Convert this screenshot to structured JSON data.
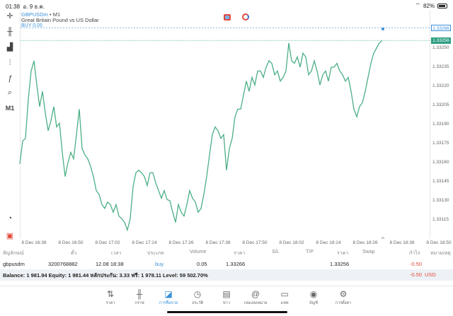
{
  "status": {
    "time": "01:38",
    "date": "อ. 9 ธ.ค.",
    "battery": "82%"
  },
  "chart": {
    "symbol": "GBPUSDm",
    "timeframe": "M1",
    "description": "Great Britain Pound vs US Dollar",
    "order_label": "BUY 0.05",
    "timeframe_button": "M1",
    "colors": {
      "line": "#4caf86",
      "ask": "#3a8fd8",
      "bid": "#2e9e82"
    }
  },
  "chart_data": {
    "type": "line",
    "series": [
      {
        "values": [
          1.33159,
          1.33177,
          1.33179,
          1.3321,
          1.33232,
          1.3324,
          1.33221,
          1.33204,
          1.33216,
          1.33199,
          1.33185,
          1.33193,
          1.33204,
          1.33188,
          1.33191,
          1.33168,
          1.33149,
          1.3316,
          1.33168,
          1.33163,
          1.33182,
          1.33202,
          1.33171,
          1.33166,
          1.33163,
          1.33157,
          1.33149,
          1.33138,
          1.33135,
          1.33127,
          1.33124,
          1.33129,
          1.33127,
          1.33121,
          1.33127,
          1.33118,
          1.33116,
          1.33113,
          1.33107,
          1.33116,
          1.33141,
          1.33152,
          1.33154,
          1.33152,
          1.33149,
          1.33142,
          1.33152,
          1.33152,
          1.33144,
          1.33138,
          1.33132,
          1.33138,
          1.33131,
          1.3313,
          1.33121,
          1.33113,
          1.33127,
          1.33121,
          1.33118,
          1.33127,
          1.33138,
          1.33132,
          1.33129,
          1.33121,
          1.33124,
          1.33135,
          1.33149,
          1.33166,
          1.33182,
          1.33188,
          1.33185,
          1.33179,
          1.33182,
          1.33154,
          1.33171,
          1.33179,
          1.33196,
          1.33202,
          1.33202,
          1.33213,
          1.33224,
          1.33216,
          1.33227,
          1.33221,
          1.33232,
          1.33232,
          1.33227,
          1.33235,
          1.3324,
          1.33238,
          1.33229,
          1.33232,
          1.33224,
          1.33227,
          1.33232,
          1.33254,
          1.3324,
          1.33238,
          1.33243,
          1.33235,
          1.33246,
          1.33243,
          1.33229,
          1.33232,
          1.3324,
          1.33232,
          1.33221,
          1.33229,
          1.33232,
          1.33224,
          1.33235,
          1.33235,
          1.33238,
          1.33232,
          1.33229,
          1.33224,
          1.33227,
          1.33216,
          1.33202,
          1.33196,
          1.33204,
          1.33207,
          1.33216,
          1.33227,
          1.33238,
          1.33246,
          1.3325,
          1.33254,
          1.33256
        ]
      }
    ],
    "y_ticks": [
      "1.33250",
      "1.33235",
      "1.33220",
      "1.33205",
      "1.33190",
      "1.33175",
      "1.33160",
      "1.33145",
      "1.33130",
      "1.33115"
    ],
    "x_ticks": [
      "8 Dec 16:38",
      "8 Dec 16:50",
      "8 Dec 17:02",
      "8 Dec 17:14",
      "8 Dec 17:26",
      "8 Dec 17:38",
      "8 Dec 17:50",
      "8 Dec 18:02",
      "8 Dec 18:14",
      "8 Dec 18:26",
      "8 Dec 18:38",
      "8 Dec 18:50"
    ],
    "ask_price": "1.33266",
    "bid_price": "1.33256",
    "ylim": [
      1.331,
      1.3328
    ]
  },
  "table": {
    "headers": [
      "สัญลักษณ์",
      "ตั๋ว",
      "เวลา",
      "ประเภท",
      "Volume",
      "ราคา",
      "S/L",
      "T/P",
      "ราคา",
      "Swap",
      "กำไร",
      "หมายเหตุ"
    ],
    "rows": [
      {
        "symbol": "gbpusdm",
        "ticket": "3200768882",
        "time": "12.08 18:38",
        "type": "buy",
        "volume": "0.05",
        "open_price": "1.33266",
        "sl": "",
        "tp": "",
        "price": "1.33256",
        "swap": "",
        "profit": "-0.50",
        "comment": ""
      }
    ],
    "balance": "Balance: 1 981.94 Equity: 1 981.44 หลักประกัน: 3.33 ฟรี: 1 978.11 Level: 59 502.70%",
    "total_profit": "-0.50",
    "currency": "USD"
  },
  "nav": [
    {
      "label": "ราคา",
      "icon": "arrows-icon"
    },
    {
      "label": "กราฟ",
      "icon": "candles-icon"
    },
    {
      "label": "การซื้อขาย",
      "icon": "trade-chart-icon",
      "active": true
    },
    {
      "label": "ประวัติ",
      "icon": "history-icon"
    },
    {
      "label": "ข่าว",
      "icon": "news-icon"
    },
    {
      "label": "กล่องจดหมาย",
      "icon": "mail-icon"
    },
    {
      "label": "แชท",
      "icon": "chat-icon"
    },
    {
      "label": "บัญชี",
      "icon": "account-icon"
    },
    {
      "label": "การตั้งค่า",
      "icon": "gear-icon"
    }
  ]
}
